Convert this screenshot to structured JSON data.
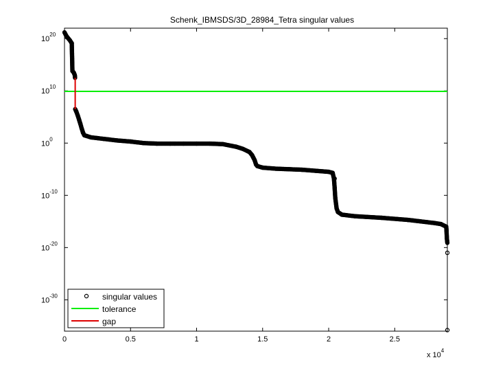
{
  "chart_data": {
    "type": "scatter",
    "title": "Schenk_IBMSDS/3D_28984_Tetra singular values",
    "xlabel": "",
    "ylabel": "",
    "x_exponent_label": "x 10",
    "x_exponent_power": "4",
    "xlim": [
      0,
      28984
    ],
    "ylim_log10": [
      -36,
      22
    ],
    "y_scale": "log",
    "x_ticks": [
      0,
      5000,
      10000,
      15000,
      20000,
      25000
    ],
    "x_tick_labels": [
      "0",
      "0.5",
      "1",
      "1.5",
      "2",
      "2.5"
    ],
    "y_ticks_log10": [
      20,
      10,
      0,
      -10,
      -20,
      -30
    ],
    "y_tick_base": "10",
    "y_tick_exponents": [
      "20",
      "10",
      "0",
      "-10",
      "-20",
      "-30"
    ],
    "grid": false,
    "legend_position": "bottom-left",
    "series": [
      {
        "name": "singular values",
        "style": "circle-markers",
        "color": "#000000",
        "x": [
          0,
          100,
          200,
          300,
          400,
          500,
          550,
          600,
          700,
          780,
          800,
          810,
          900,
          1000,
          1100,
          1200,
          1300,
          1400,
          1500,
          2000,
          3000,
          4000,
          5000,
          6000,
          7000,
          8000,
          9000,
          10000,
          11000,
          12000,
          13000,
          13500,
          14000,
          14200,
          14400,
          14500,
          14600,
          15000,
          16000,
          17000,
          18000,
          19000,
          20000,
          20300,
          20400,
          20450,
          20500,
          20600,
          20700,
          21000,
          22000,
          24000,
          26000,
          28000,
          28500,
          28900,
          28920,
          28950,
          28984
        ],
        "y_log10": [
          21.2,
          20.7,
          20.3,
          20.0,
          19.7,
          19.3,
          19.1,
          13.8,
          13.5,
          13.0,
          12.5,
          6.5,
          6.0,
          5.3,
          4.5,
          3.7,
          2.8,
          2.0,
          1.5,
          1.1,
          0.8,
          0.5,
          0.3,
          0.0,
          -0.1,
          -0.1,
          -0.1,
          -0.1,
          -0.1,
          -0.2,
          -0.7,
          -1.1,
          -1.7,
          -2.3,
          -3.3,
          -4.1,
          -4.4,
          -4.7,
          -4.9,
          -5.0,
          -5.1,
          -5.3,
          -5.5,
          -5.7,
          -6.8,
          -8.5,
          -10.5,
          -12.5,
          -13.2,
          -13.7,
          -14.0,
          -14.3,
          -14.7,
          -15.3,
          -15.5,
          -16.0,
          -16.8,
          -18.3,
          -19.1
        ]
      },
      {
        "name": "",
        "style": "circle-markers",
        "color": "#000000",
        "x": [
          20450,
          28984,
          28984
        ],
        "y_log10": [
          -6.8,
          -21.0,
          -35.8
        ]
      },
      {
        "name": "tolerance",
        "style": "line",
        "color": "#00ee00",
        "x": [
          0,
          28984
        ],
        "y_log10": [
          9.9,
          9.9
        ]
      },
      {
        "name": "gap",
        "style": "line",
        "color": "#dd0000",
        "x": [
          810,
          810
        ],
        "y_log10": [
          12.5,
          6.5
        ]
      }
    ]
  }
}
